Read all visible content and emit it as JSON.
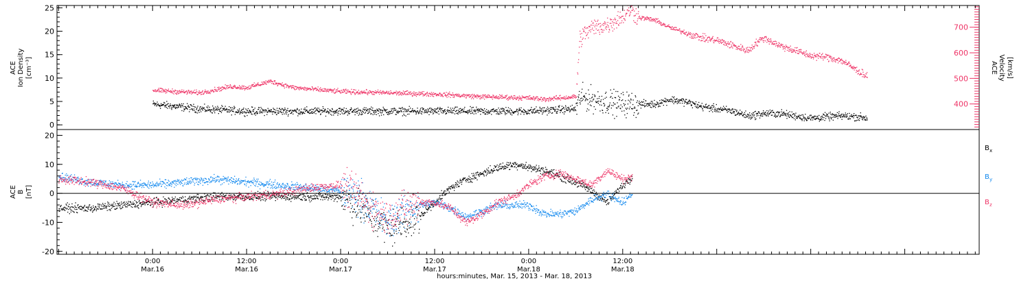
{
  "colors": {
    "density": "#000000",
    "velocity": "#ee3366",
    "bx": "#000000",
    "by": "#1188ee",
    "bz": "#ee3366",
    "axis": "#000000"
  },
  "chart_data": [
    {
      "type": "scatter",
      "panel": "plasma",
      "title": "",
      "ylabel_left": [
        "ACE",
        "Ion Density",
        "[cm⁻³]"
      ],
      "ylabel_right": [
        "ACE",
        "Velocity",
        "[km/s]"
      ],
      "ylim_left": [
        -1,
        25.5
      ],
      "yticks_left": [
        0,
        5,
        10,
        15,
        20,
        25
      ],
      "ylim_right": [
        300,
        785
      ],
      "yticks_right": [
        400,
        500,
        600,
        700
      ],
      "series": [
        {
          "axis": "left",
          "color": "density",
          "x": [
            0,
            6,
            12,
            18,
            24,
            30,
            36,
            42,
            48,
            54,
            54.5,
            56,
            58,
            60,
            62,
            64,
            66,
            68,
            70,
            72,
            74,
            76,
            78,
            80,
            82,
            84,
            86,
            88,
            90,
            91.2
          ],
          "y": [
            4.5,
            3.5,
            3.0,
            3.0,
            3.0,
            3.0,
            3.0,
            3.0,
            3.0,
            3.5,
            6.0,
            5.5,
            5.0,
            4.5,
            4.5,
            4.5,
            5.5,
            5.0,
            4.0,
            3.5,
            3.0,
            2.0,
            2.5,
            2.5,
            2.0,
            1.5,
            1.8,
            2.0,
            1.8,
            1.5
          ]
        },
        {
          "axis": "right",
          "color": "velocity",
          "x": [
            0,
            6,
            10,
            12,
            15,
            18,
            24,
            30,
            36,
            42,
            48,
            50,
            54,
            54.5,
            56,
            58,
            60,
            61,
            62,
            64,
            66,
            68,
            70,
            72,
            74,
            76,
            77,
            78,
            80,
            82,
            84,
            86,
            88,
            90,
            91.2
          ],
          "y": [
            455,
            445,
            470,
            465,
            490,
            465,
            450,
            445,
            440,
            430,
            425,
            420,
            430,
            660,
            700,
            710,
            745,
            770,
            740,
            730,
            700,
            680,
            660,
            650,
            630,
            610,
            640,
            660,
            630,
            610,
            590,
            585,
            570,
            530,
            510
          ]
        }
      ]
    },
    {
      "type": "scatter",
      "panel": "magnetic",
      "title": "",
      "ylabel_left": [
        "ACE",
        "B",
        "[nT]"
      ],
      "ylim": [
        -21,
        22
      ],
      "yticks": [
        -20,
        -10,
        0,
        10,
        20
      ],
      "zero_line": true,
      "xlabel": "hours:minutes, Mar. 15, 2013 - Mar. 18, 2013",
      "xlim": [
        -12.2,
        105.5
      ],
      "xticks": [
        {
          "x": 0,
          "time": "0:00",
          "date": "Mar.16"
        },
        {
          "x": 12,
          "time": "12:00",
          "date": "Mar.16"
        },
        {
          "x": 24,
          "time": "0:00",
          "date": "Mar.17"
        },
        {
          "x": 36,
          "time": "12:00",
          "date": "Mar.17"
        },
        {
          "x": 48,
          "time": "0:00",
          "date": "Mar.18"
        },
        {
          "x": 60,
          "time": "12:00",
          "date": "Mar.18"
        }
      ],
      "series": [
        {
          "name": "Bx",
          "label_main": "B",
          "label_sub": "x",
          "color": "bx",
          "x": [
            -12,
            -8,
            -4,
            0,
            4,
            8,
            12,
            16,
            20,
            24,
            26,
            28,
            30,
            32,
            34,
            36,
            38,
            40,
            42,
            44,
            46,
            47,
            48,
            50,
            52,
            54,
            56,
            58,
            60,
            61.2
          ],
          "y": [
            -5,
            -5,
            -4,
            -3,
            -2,
            -1,
            -1,
            -1,
            -1,
            -1,
            -4,
            -8,
            -12,
            -10,
            -8,
            -3,
            2,
            5,
            7,
            9,
            10,
            10,
            9,
            8,
            6,
            4,
            1,
            -3,
            3,
            6
          ]
        },
        {
          "name": "By",
          "label_main": "B",
          "label_sub": "y",
          "color": "by",
          "x": [
            -12,
            -8,
            -4,
            0,
            4,
            8,
            12,
            16,
            20,
            24,
            26,
            28,
            30,
            32,
            34,
            36,
            38,
            40,
            42,
            44,
            46,
            48,
            50,
            52,
            54,
            56,
            58,
            60,
            61.2
          ],
          "y": [
            6,
            4,
            3,
            3,
            4,
            5,
            4,
            3,
            2,
            1,
            0,
            -5,
            -10,
            -6,
            -4,
            -3,
            -5,
            -8,
            -6,
            -4,
            -4,
            -4,
            -7,
            -7,
            -6,
            -2,
            0,
            -3,
            0
          ]
        },
        {
          "name": "Bz",
          "label_main": "B",
          "label_sub": "z",
          "color": "bz",
          "x": [
            -12,
            -8,
            -4,
            0,
            4,
            8,
            12,
            16,
            20,
            24,
            26,
            28,
            30,
            32,
            34,
            36,
            38,
            40,
            42,
            44,
            46,
            48,
            50,
            52,
            54,
            56,
            58,
            60,
            61.2
          ],
          "y": [
            5,
            4,
            2,
            -3,
            -4,
            -2,
            -1,
            0,
            2,
            3,
            0,
            -5,
            -8,
            -5,
            -3,
            -3,
            -5,
            -10,
            -7,
            -3,
            -1,
            3,
            6,
            7,
            5,
            3,
            8,
            5,
            6
          ]
        }
      ]
    }
  ]
}
